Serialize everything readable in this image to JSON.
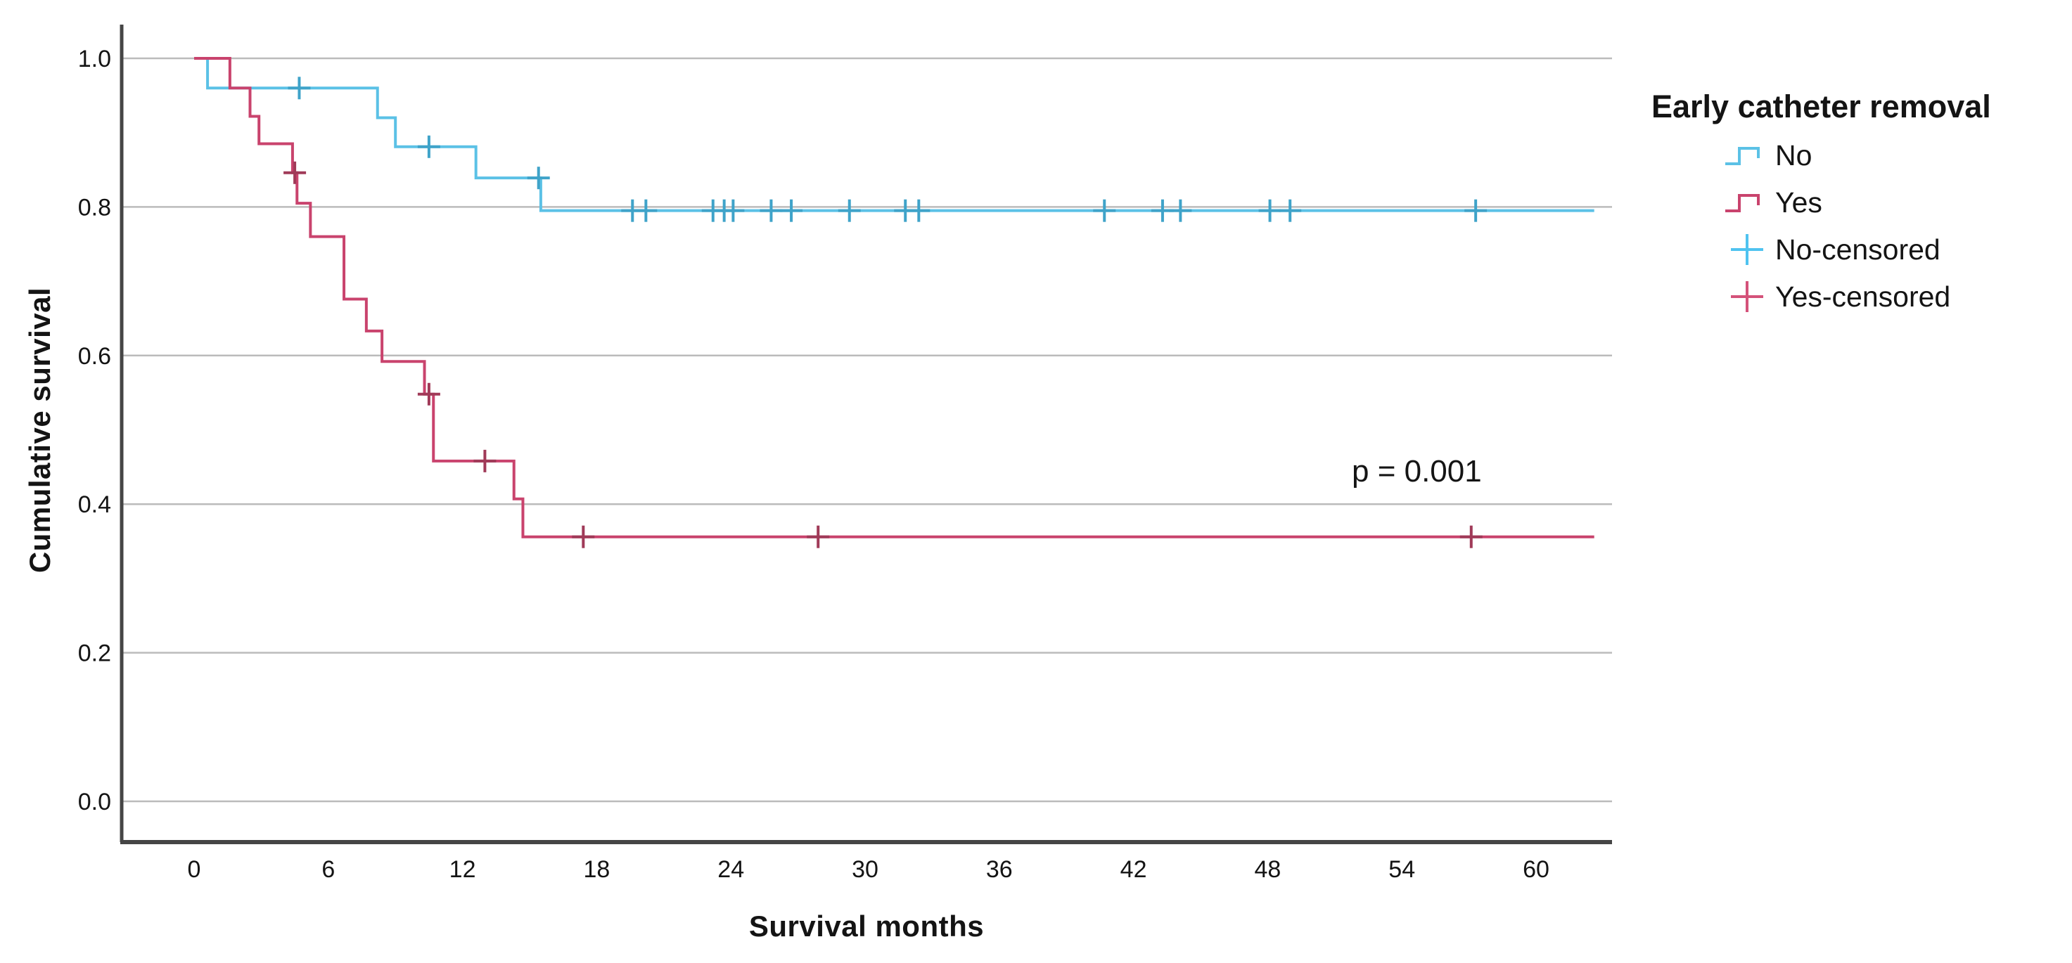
{
  "chart_data": {
    "type": "line",
    "subtype": "kaplan-meier-step",
    "title": "",
    "xlabel": "Survival months",
    "ylabel": "Cumulative survival",
    "xlim": [
      0,
      63.5
    ],
    "ylim": [
      0.0,
      1.0
    ],
    "xticks": [
      0,
      6,
      12,
      18,
      24,
      30,
      36,
      42,
      48,
      54,
      60
    ],
    "yticks": [
      0.0,
      0.2,
      0.4,
      0.6,
      0.8,
      1.0
    ],
    "grid": "horizontal",
    "grid_color": "#bbbbbb",
    "axis_color": "#454545",
    "text_color": "#141414",
    "annotation": {
      "text": "p = 0.001",
      "x_month": 55.3,
      "y_value": 0.44
    },
    "legend": {
      "title": "Early catheter removal",
      "position": "right",
      "items": [
        {
          "label": "No",
          "symbol": "step-line",
          "color": "#5bc1e6"
        },
        {
          "label": "Yes",
          "symbol": "step-line",
          "color": "#c9436d"
        },
        {
          "label": "No-censored",
          "symbol": "plus",
          "color": "#4fc3f0"
        },
        {
          "label": "Yes-censored",
          "symbol": "plus",
          "color": "#d4527a"
        }
      ]
    },
    "series": [
      {
        "name": "No",
        "group": "Early catheter removal: No",
        "color": "#5bc1e6",
        "censor_color": "#3fa3c9",
        "steps": [
          [
            0,
            1.0
          ],
          [
            0.6,
            0.96
          ],
          [
            8.2,
            0.92
          ],
          [
            9.0,
            0.881
          ],
          [
            12.6,
            0.839
          ],
          [
            15.5,
            0.795
          ]
        ],
        "end_month": 62.6,
        "censored": [
          [
            4.7,
            0.96
          ],
          [
            10.5,
            0.881
          ],
          [
            15.4,
            0.839
          ],
          [
            19.6,
            0.795
          ],
          [
            20.2,
            0.795
          ],
          [
            23.2,
            0.795
          ],
          [
            23.7,
            0.795
          ],
          [
            24.1,
            0.795
          ],
          [
            25.8,
            0.795
          ],
          [
            26.7,
            0.795
          ],
          [
            29.3,
            0.795
          ],
          [
            31.8,
            0.795
          ],
          [
            32.4,
            0.795
          ],
          [
            40.7,
            0.795
          ],
          [
            43.3,
            0.795
          ],
          [
            44.1,
            0.795
          ],
          [
            48.1,
            0.795
          ],
          [
            49.0,
            0.795
          ],
          [
            57.3,
            0.795
          ]
        ]
      },
      {
        "name": "Yes",
        "group": "Early catheter removal: Yes",
        "color": "#c9436d",
        "censor_color": "#a03a58",
        "steps": [
          [
            0,
            1.0
          ],
          [
            1.6,
            0.96
          ],
          [
            2.5,
            0.922
          ],
          [
            2.9,
            0.885
          ],
          [
            4.4,
            0.846
          ],
          [
            4.6,
            0.805
          ],
          [
            5.2,
            0.76
          ],
          [
            6.7,
            0.676
          ],
          [
            7.7,
            0.633
          ],
          [
            8.4,
            0.592
          ],
          [
            10.3,
            0.548
          ],
          [
            10.7,
            0.458
          ],
          [
            14.3,
            0.407
          ],
          [
            14.7,
            0.356
          ]
        ],
        "end_month": 62.6,
        "censored": [
          [
            4.5,
            0.846
          ],
          [
            10.5,
            0.548
          ],
          [
            13.0,
            0.458
          ],
          [
            17.4,
            0.356
          ],
          [
            27.9,
            0.356
          ],
          [
            57.1,
            0.356
          ]
        ]
      }
    ]
  }
}
